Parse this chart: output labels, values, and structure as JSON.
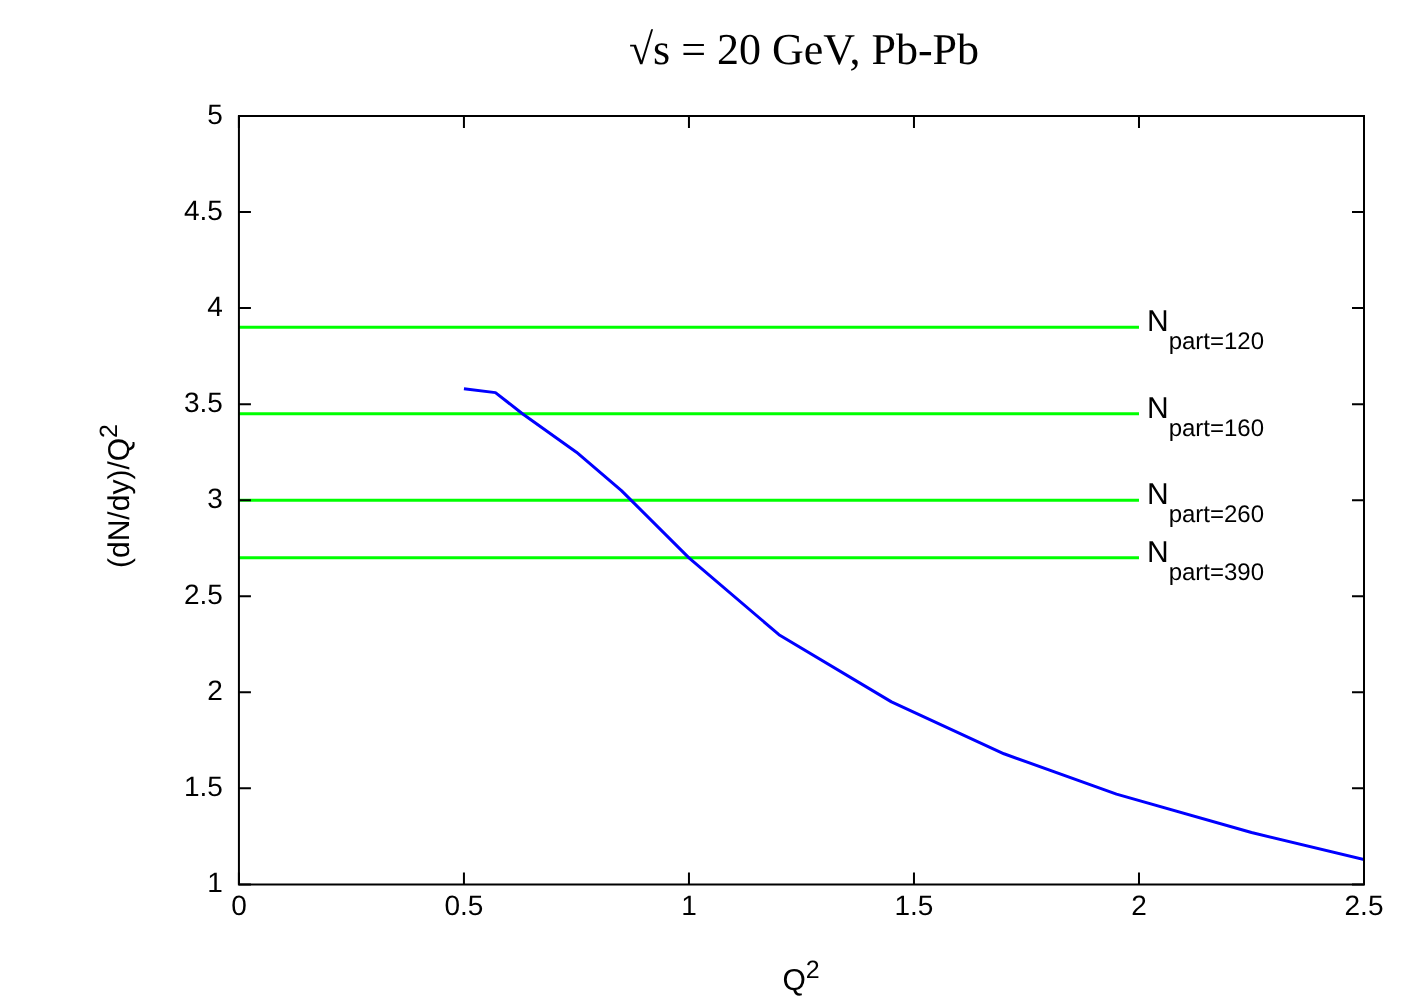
{
  "chart_data": {
    "type": "line",
    "title": "√s = 20 GeV, Pb-Pb",
    "xlabel": "Q$^{2}$",
    "ylabel": "(dN/dy)/Q$^{2}$",
    "xlim": [
      0,
      2.5
    ],
    "xticks": [
      0,
      0.5,
      1,
      1.5,
      2,
      2.5
    ],
    "ylim": [
      1,
      5
    ],
    "yticks": [
      1,
      1.5,
      2,
      2.5,
      3,
      3.5,
      4,
      4.5,
      5
    ],
    "grid": false,
    "legend": false,
    "marker": "none",
    "line_style": "solid",
    "series": [
      {
        "color": "#0000ff",
        "x": [
          0.5,
          0.57,
          0.63,
          0.75,
          0.85,
          1.0,
          1.2,
          1.45,
          1.7,
          1.95,
          2.25,
          2.5
        ],
        "values": [
          3.58,
          3.56,
          3.45,
          3.25,
          3.05,
          2.7,
          2.3,
          1.95,
          1.68,
          1.47,
          1.27,
          1.13
        ]
      },
      {
        "name": "N$_{part=120}$",
        "color": "#00ff00",
        "x": [
          0,
          2.0
        ],
        "values": [
          3.9,
          3.9
        ]
      },
      {
        "name": "N$_{part=160}$",
        "color": "#00ff00",
        "x": [
          0,
          2.0
        ],
        "values": [
          3.45,
          3.45
        ]
      },
      {
        "name": "N$_{part=260}$",
        "color": "#00ff00",
        "x": [
          0,
          2.0
        ],
        "values": [
          3.0,
          3.0
        ]
      },
      {
        "name": "N$_{part=390}$",
        "color": "#00ff00",
        "x": [
          0,
          2.0
        ],
        "values": [
          2.7,
          2.7
        ]
      }
    ]
  }
}
